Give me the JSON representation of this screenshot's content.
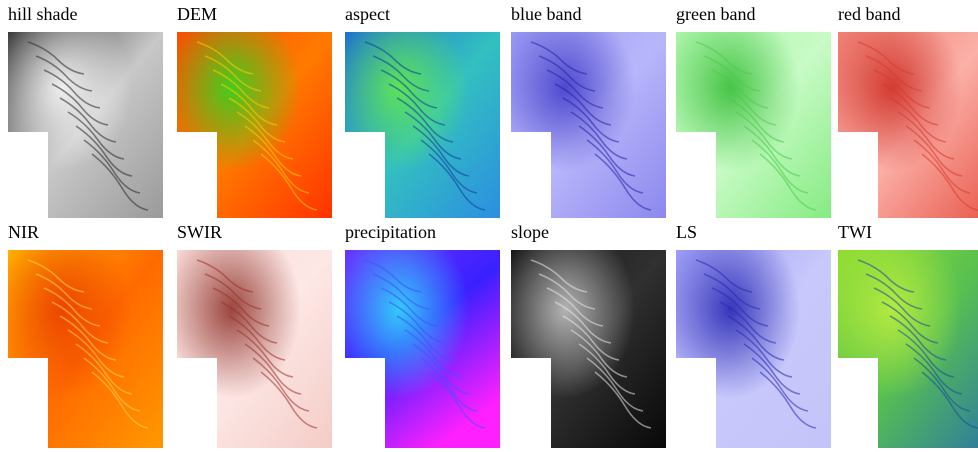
{
  "panels": [
    {
      "label": "hill shade"
    },
    {
      "label": "DEM"
    },
    {
      "label": "aspect"
    },
    {
      "label": "blue band"
    },
    {
      "label": "green band"
    },
    {
      "label": "red band"
    },
    {
      "label": "NIR"
    },
    {
      "label": "SWIR"
    },
    {
      "label": "precipitation"
    },
    {
      "label": "slope"
    },
    {
      "label": "LS"
    },
    {
      "label": "TWI"
    }
  ]
}
